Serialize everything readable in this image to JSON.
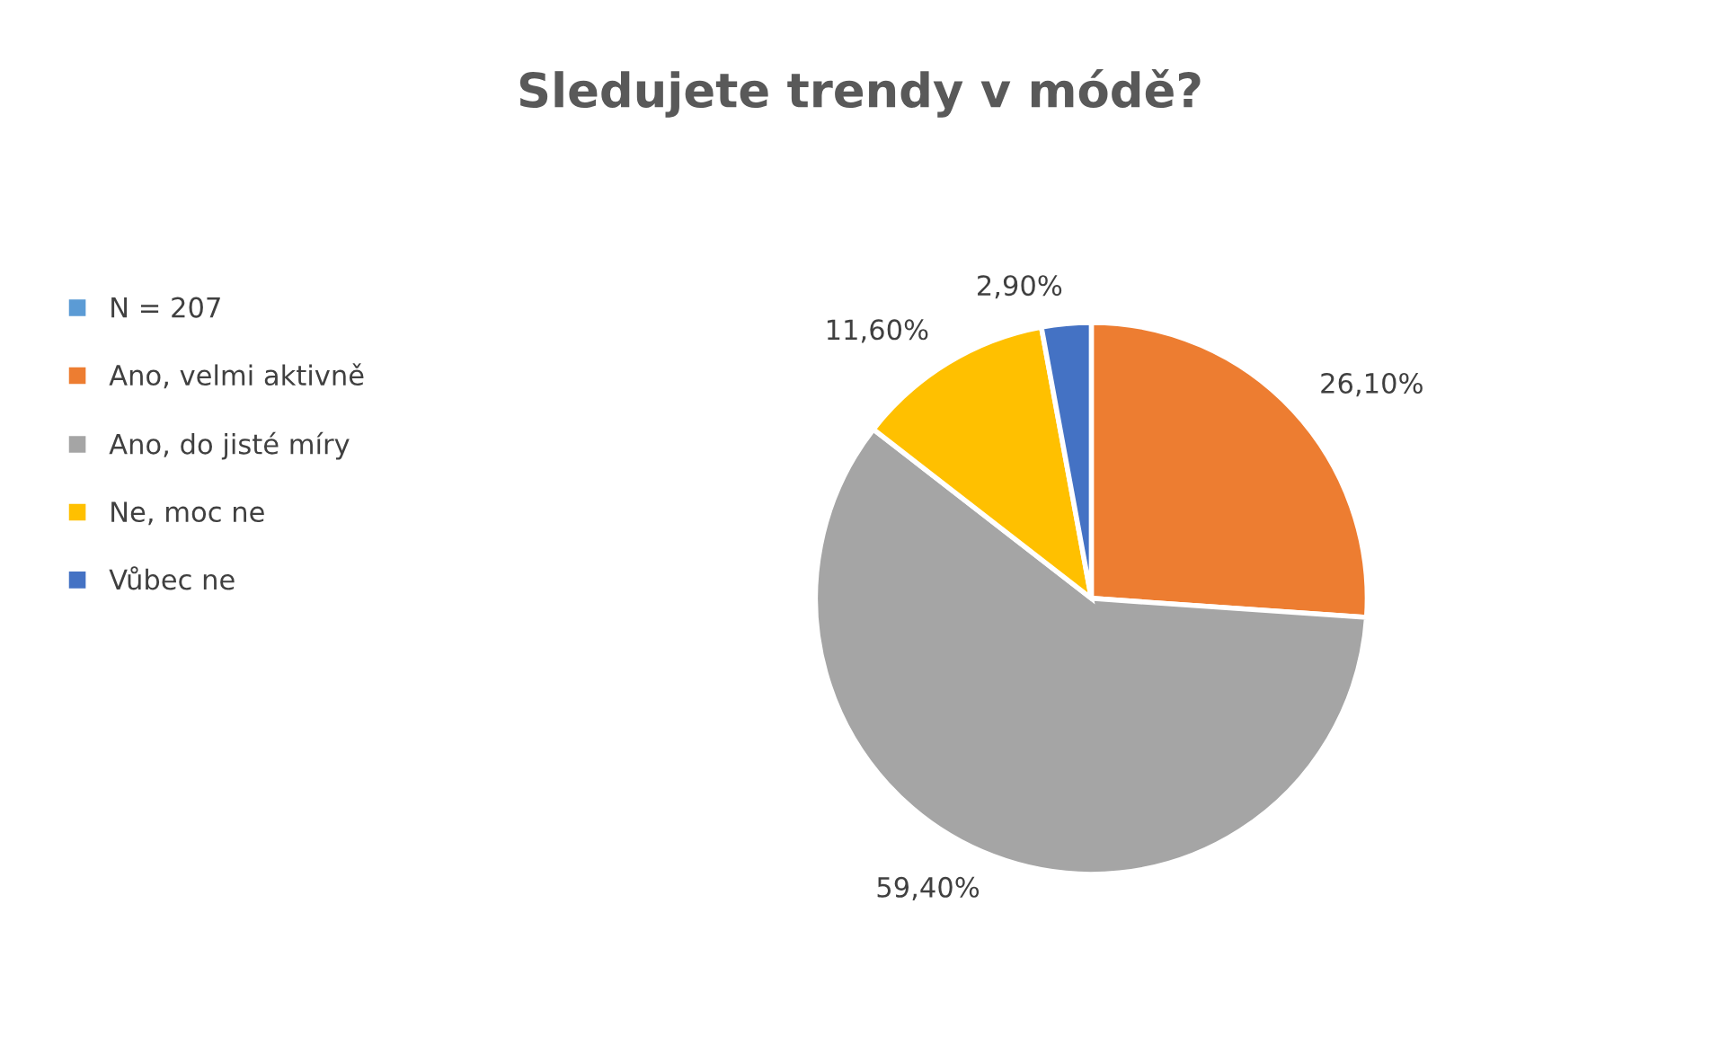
{
  "chart_data": {
    "type": "pie",
    "title": "Sledujete trendy v módě?",
    "categories": [
      "N = 207",
      "Ano, velmi aktivně",
      "Ano, do jisté míry",
      "Ne, moc ne",
      "Vůbec ne"
    ],
    "values": [
      0,
      26.1,
      59.4,
      11.6,
      2.9
    ],
    "value_labels": [
      null,
      "26,10%",
      "59,40%",
      "11,60%",
      "2,90%"
    ],
    "colors": [
      "#5b9bd5",
      "#ed7d31",
      "#a5a5a5",
      "#ffc000",
      "#4472c4"
    ],
    "legend": "left"
  }
}
